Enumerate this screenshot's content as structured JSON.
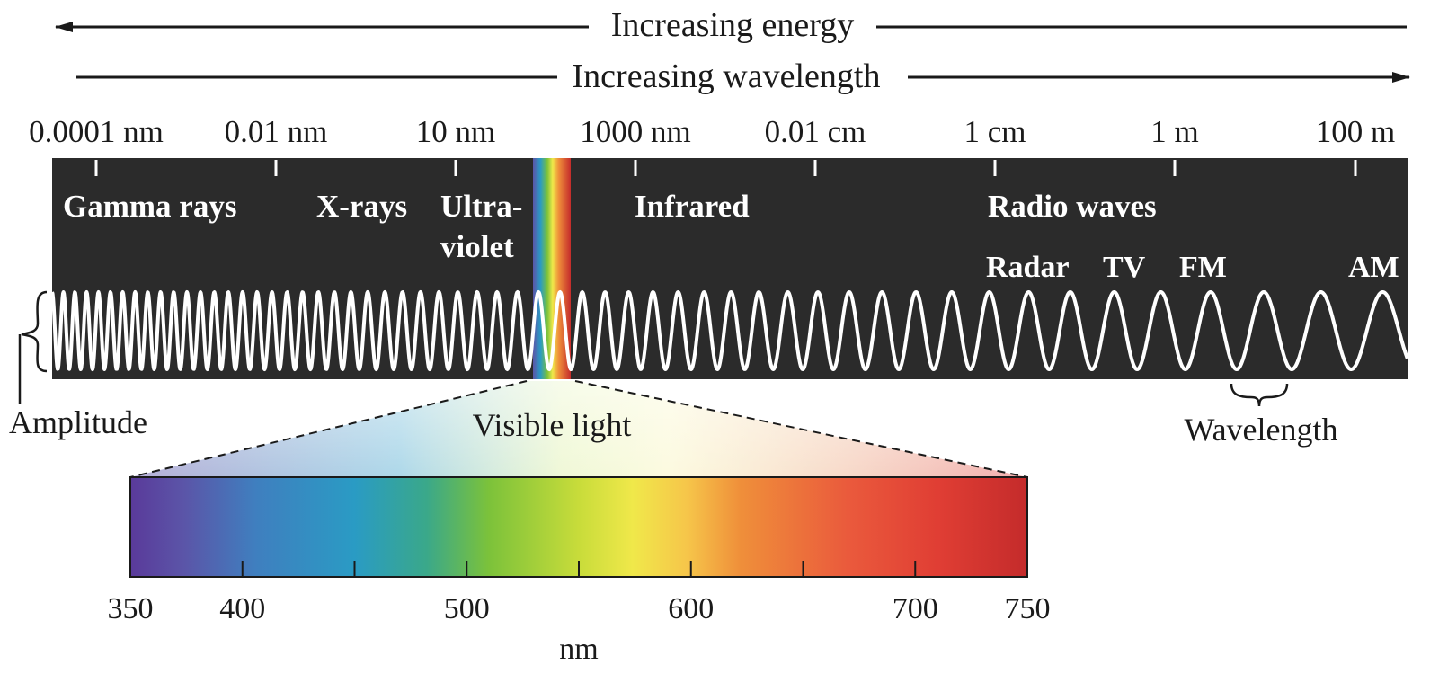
{
  "arrows": {
    "energy_label": "Increasing energy",
    "wavelength_label": "Increasing wavelength"
  },
  "scale_labels": [
    "0.0001 nm",
    "0.01 nm",
    "10 nm",
    "1000 nm",
    "0.01 cm",
    "1 cm",
    "1 m",
    "100 m"
  ],
  "bands": {
    "gamma": "Gamma rays",
    "xray": "X-rays",
    "uv_line1": "Ultra-",
    "uv_line2": "violet",
    "infrared": "Infrared",
    "radio": "Radio waves"
  },
  "radio_sub": {
    "radar": "Radar",
    "tv": "TV",
    "fm": "FM",
    "am": "AM"
  },
  "annotations": {
    "amplitude": "Amplitude",
    "wavelength": "Wavelength",
    "visible_light": "Visible light"
  },
  "visible_scale": {
    "ticks": [
      350,
      400,
      500,
      600,
      700,
      750
    ],
    "minor_ticks": [
      450,
      550,
      650
    ],
    "unit": "nm",
    "range": [
      350,
      750
    ]
  },
  "colors": {
    "band_background": "#2b2b2b",
    "wave": "#ffffff",
    "text": "#1a1a1a"
  }
}
